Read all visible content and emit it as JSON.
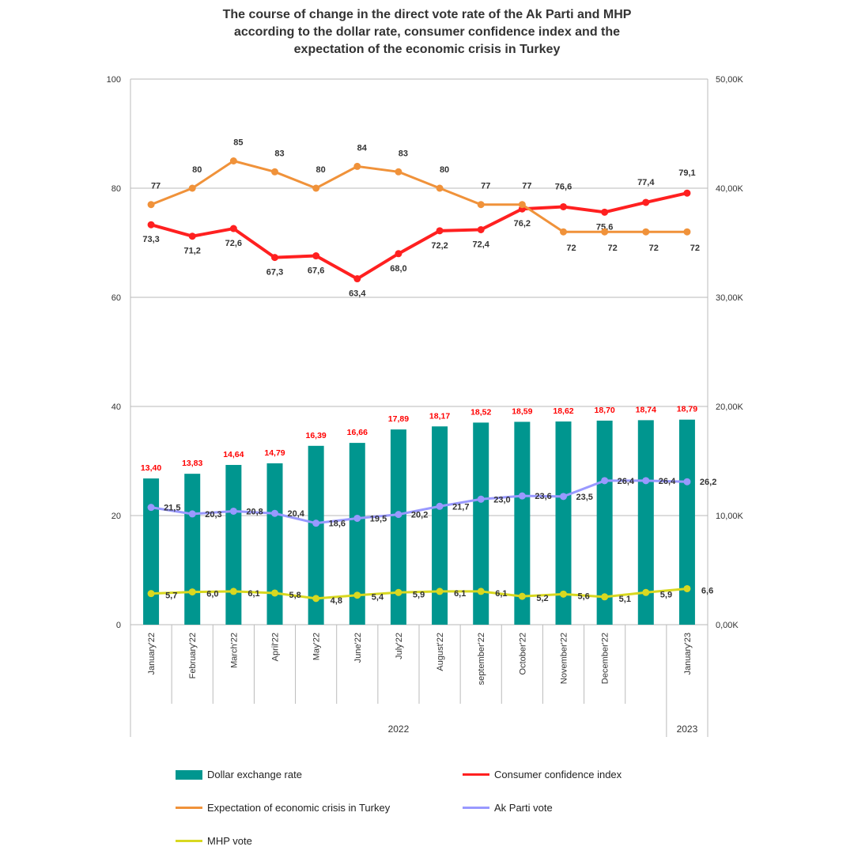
{
  "chart_data": {
    "type": "bar+line",
    "title_lines": [
      "The course of change in the direct vote rate of the Ak Parti and MHP",
      "according to the dollar rate, consumer confidence index and the",
      "expectation of the economic crisis in Turkey"
    ],
    "categories": [
      "January'22",
      "February'22",
      "March'22",
      "April'22",
      "May'22",
      "June'22",
      "July'22",
      "August'22",
      "september'22",
      "October'22",
      "November'22",
      "December'22",
      "",
      "January'23"
    ],
    "groups": [
      {
        "label": "2022",
        "span": 13
      },
      {
        "label": "2023",
        "span": 1
      }
    ],
    "left_axis": {
      "range": [
        0,
        100
      ],
      "ticks": [
        "0",
        "20",
        "40",
        "60",
        "80",
        "100"
      ]
    },
    "right_axis": {
      "range": [
        0,
        50
      ],
      "ticks": [
        "0,00K",
        "10,00K",
        "20,00K",
        "30,00K",
        "40,00K",
        "50,00K"
      ]
    },
    "grid": true,
    "legend_placement": "bottom",
    "series": [
      {
        "name": "Dollar exchange rate",
        "type": "bar",
        "axis": "right",
        "color": "#00968f",
        "label_color": "#ff0000",
        "values": [
          13.4,
          13.83,
          14.64,
          14.79,
          16.39,
          16.66,
          17.89,
          18.17,
          18.52,
          18.59,
          18.62,
          18.7,
          18.74,
          18.79
        ],
        "labels": [
          "13,40",
          "13,83",
          "14,64",
          "14,79",
          "16,39",
          "16,66",
          "17,89",
          "18,17",
          "18,52",
          "18,59",
          "18,62",
          "18,70",
          "18,74",
          "18,79"
        ]
      },
      {
        "name": "Consumer confidence index",
        "type": "line",
        "axis": "left",
        "color": "#ff2020",
        "values": [
          73.3,
          71.2,
          72.6,
          67.3,
          67.6,
          63.4,
          68.0,
          72.2,
          72.4,
          76.2,
          76.6,
          75.6,
          77.4,
          79.1
        ],
        "labels": [
          "73,3",
          "71,2",
          "72,6",
          "67,3",
          "67,6",
          "63,4",
          "68,0",
          "72,2",
          "72,4",
          "76,2",
          "76,6",
          "75,6",
          "77,4",
          "79,1"
        ]
      },
      {
        "name": "Expectation of economic crisis in Turkey",
        "type": "line",
        "axis": "left",
        "color": "#f0923a",
        "values": [
          77,
          80,
          85,
          83,
          80,
          84,
          83,
          80,
          77,
          77,
          72,
          72,
          72,
          72
        ],
        "labels": [
          "77",
          "80",
          "85",
          "83",
          "80",
          "84",
          "83",
          "80",
          "77",
          "77",
          "72",
          "72",
          "72",
          "72"
        ]
      },
      {
        "name": "Ak Parti vote",
        "type": "line",
        "axis": "left",
        "color": "#9999ff",
        "values": [
          21.5,
          20.3,
          20.8,
          20.4,
          18.6,
          19.5,
          20.2,
          21.7,
          23.0,
          23.6,
          23.5,
          26.4,
          26.4,
          26.2
        ],
        "labels": [
          "21,5",
          "20,3",
          "20,8",
          "20,4",
          "18,6",
          "19,5",
          "20,2",
          "21,7",
          "23,0",
          "23,6",
          "23,5",
          "26,4",
          "26,4",
          "26,2"
        ]
      },
      {
        "name": "MHP vote",
        "type": "line",
        "axis": "left",
        "color": "#d8d820",
        "values": [
          5.7,
          6.0,
          6.1,
          5.8,
          4.8,
          5.4,
          5.9,
          6.1,
          6.1,
          5.2,
          5.6,
          5.1,
          5.9,
          6.6
        ],
        "labels": [
          "5,7",
          "6,0",
          "6,1",
          "5,8",
          "4,8",
          "5,4",
          "5,9",
          "6,1",
          "6,1",
          "5,2",
          "5,6",
          "5,1",
          "5,9",
          "6,6"
        ]
      }
    ]
  }
}
